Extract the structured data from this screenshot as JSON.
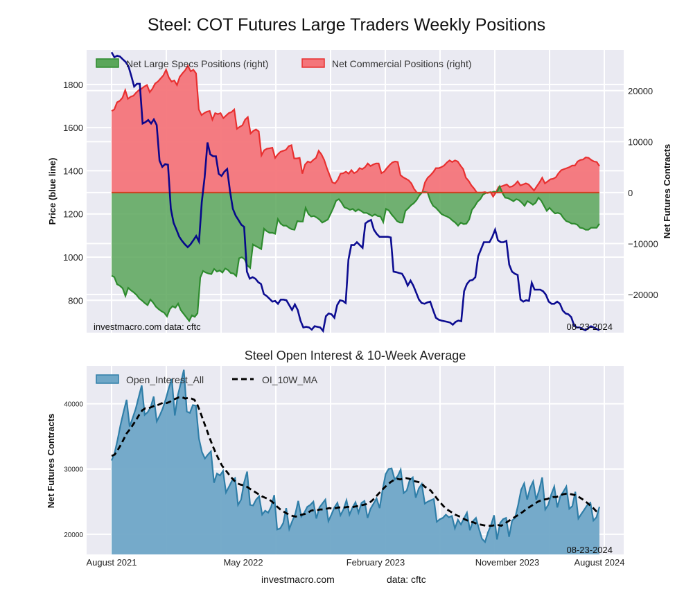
{
  "header": {
    "title": "Steel: COT Futures Large Traders Weekly Positions",
    "subtitle": "Steel Open Interest & 10-Week Average"
  },
  "footer": {
    "site": "investmacro.com",
    "source": "data: cftc"
  },
  "colors": {
    "plot_bg": "#eaeaf2",
    "grid": "#ffffff",
    "price_line": "#00008b",
    "specs_fill": "#5aa65a",
    "specs_line": "#2e8b2e",
    "commercial_fill": "#f4757a",
    "commercial_line": "#e83030",
    "oi_fill": "#6fa7c7",
    "oi_line": "#2f7ea8",
    "ma_line": "#000000"
  },
  "chart_data": [
    {
      "type": "line",
      "name": "positions",
      "title": "Steel: COT Futures Large Traders Weekly Positions",
      "xlabel": "",
      "ylabel": "Price (blue line)",
      "y2label": "Net Futures Contracts",
      "ylim": [
        650,
        1960
      ],
      "y2lim": [
        -27500,
        28000
      ],
      "yticks": [
        800,
        1000,
        1200,
        1400,
        1600,
        1800
      ],
      "y2ticks": [
        -20000,
        -10000,
        0,
        10000,
        20000
      ],
      "y2ticklabels": [
        "−20000",
        "−10000",
        "0",
        "10000",
        "20000"
      ],
      "grid": true,
      "legend_position": "top-left",
      "legend": [
        "Net Large Specs Positions (right)",
        "Net Commercial Positions (right)"
      ],
      "annotations": {
        "left": "investmacro.com    data: cftc",
        "right": "08-23-2024"
      },
      "x_start": "2021-08",
      "x_end": "2024-08-23",
      "price": [
        1949,
        1926,
        1933,
        1929,
        1916,
        1904,
        1884,
        1839,
        1790,
        1803,
        1803,
        1619,
        1625,
        1635,
        1619,
        1638,
        1612,
        1447,
        1418,
        1431,
        1428,
        1224,
        1159,
        1127,
        1094,
        1075,
        1059,
        1046,
        1059,
        1078,
        1098,
        1072,
        1256,
        1370,
        1531,
        1476,
        1467,
        1467,
        1386,
        1376,
        1396,
        1408,
        1305,
        1224,
        1192,
        1172,
        1150,
        1140,
        933,
        900,
        907,
        900,
        884,
        875,
        829,
        820,
        807,
        794,
        797,
        784,
        803,
        803,
        800,
        777,
        755,
        781,
        755,
        706,
        674,
        677,
        674,
        664,
        680,
        677,
        674,
        658,
        726,
        739,
        735,
        719,
        777,
        800,
        797,
        787,
        988,
        1056,
        1056,
        1069,
        1056,
        1043,
        1156,
        1166,
        1172,
        1127,
        1108,
        1094,
        1094,
        1094,
        1094,
        1091,
        933,
        930,
        926,
        923,
        900,
        868,
        891,
        868,
        836,
        803,
        787,
        784,
        790,
        794,
        755,
        719,
        710,
        706,
        703,
        700,
        697,
        687,
        700,
        706,
        703,
        842,
        875,
        891,
        894,
        907,
        1004,
        1036,
        1069,
        1069,
        1069,
        1094,
        1127,
        1078,
        1069,
        1069,
        1075,
        965,
        933,
        923,
        917,
        803,
        794,
        800,
        797,
        881,
        849,
        849,
        849,
        842,
        826,
        794,
        784,
        784,
        794,
        784,
        752,
        739,
        735,
        722,
        684,
        674,
        674,
        667,
        661,
        671,
        680,
        674,
        667,
        661
      ],
      "commercial": [
        16000,
        16300,
        17700,
        18000,
        18600,
        20100,
        18400,
        18800,
        19000,
        19600,
        20100,
        20400,
        20800,
        21100,
        19700,
        20400,
        21400,
        21800,
        22400,
        23000,
        24100,
        22600,
        21800,
        22000,
        21100,
        22700,
        23400,
        24000,
        24900,
        23800,
        24100,
        23400,
        16300,
        15200,
        15600,
        15900,
        16000,
        14300,
        15600,
        15400,
        15600,
        14600,
        15100,
        15600,
        15800,
        16300,
        12500,
        12900,
        13200,
        14300,
        14800,
        11600,
        12100,
        12400,
        12000,
        7300,
        8300,
        8600,
        8700,
        8800,
        6800,
        7500,
        8000,
        8200,
        8400,
        9100,
        9300,
        6700,
        6700,
        6800,
        3700,
        5500,
        6100,
        5900,
        6400,
        6800,
        8200,
        7500,
        6400,
        4800,
        3400,
        2000,
        1800,
        2500,
        3700,
        3800,
        4100,
        3700,
        4400,
        3800,
        4100,
        4800,
        4600,
        5000,
        5700,
        5200,
        5500,
        5700,
        5700,
        3800,
        4100,
        4800,
        5400,
        5900,
        6100,
        6000,
        3400,
        3000,
        2700,
        2400,
        1800,
        700,
        0,
        -100,
        0,
        2000,
        2900,
        3400,
        4000,
        4800,
        4800,
        5000,
        5300,
        5900,
        6300,
        6000,
        6300,
        6100,
        5300,
        4600,
        2900,
        2300,
        1400,
        800,
        0,
        0,
        0,
        100,
        -100,
        100,
        -800,
        0,
        1100,
        1200,
        1400,
        1600,
        1100,
        1200,
        1600,
        2200,
        1400,
        1600,
        1800,
        1600,
        1000,
        400,
        1200,
        2000,
        2900,
        1800,
        2200,
        2600,
        2700,
        3000,
        3800,
        4400,
        4600,
        4800,
        5000,
        5300,
        5300,
        6100,
        6400,
        6500,
        6900,
        6800,
        6400,
        6100,
        6000,
        5200
      ],
      "specs": [
        -16300,
        -16600,
        -18000,
        -18300,
        -18800,
        -20300,
        -18700,
        -19200,
        -19600,
        -20100,
        -20800,
        -21200,
        -21700,
        -22100,
        -21000,
        -21600,
        -22400,
        -22900,
        -23300,
        -23600,
        -24300,
        -22900,
        -22300,
        -22600,
        -21800,
        -23100,
        -23800,
        -24500,
        -25200,
        -24100,
        -24400,
        -23700,
        -16700,
        -15400,
        -15700,
        -15900,
        -16000,
        -15000,
        -15500,
        -15300,
        -15700,
        -14900,
        -15200,
        -15800,
        -15900,
        -16400,
        -12900,
        -12700,
        -13100,
        -14300,
        -14800,
        -10200,
        -10500,
        -10800,
        -11100,
        -7100,
        -7600,
        -7900,
        -7900,
        -8100,
        -5200,
        -6100,
        -6500,
        -6500,
        -6900,
        -7200,
        -7300,
        -5600,
        -5700,
        -5700,
        -3000,
        -4200,
        -4700,
        -4600,
        -4900,
        -5300,
        -5900,
        -5600,
        -5300,
        -4200,
        -3000,
        -1600,
        -1300,
        -2000,
        -2900,
        -3100,
        -3400,
        -3200,
        -3700,
        -3300,
        -3600,
        -4000,
        -4000,
        -4300,
        -4600,
        -4300,
        -4600,
        -4700,
        -5800,
        -3200,
        -3500,
        -4300,
        -4900,
        -5600,
        -5900,
        -5900,
        -3600,
        -3100,
        -2500,
        -2100,
        -1500,
        -600,
        0,
        100,
        0,
        -1600,
        -2600,
        -3000,
        -3600,
        -4200,
        -4500,
        -4700,
        -5000,
        -5500,
        -5900,
        -6500,
        -5900,
        -6200,
        -6100,
        -5300,
        -3400,
        -2700,
        -1800,
        -1300,
        -400,
        -100,
        0,
        0,
        200,
        0,
        1200,
        -100,
        -1000,
        -1100,
        -1400,
        -1700,
        -1300,
        -1500,
        -2000,
        -2600,
        -1700,
        -2000,
        -2400,
        -2000,
        -1000,
        -1600,
        -2600,
        -3600,
        -3000,
        -3600,
        -4100,
        -4000,
        -4200,
        -5000,
        -5600,
        -5800,
        -6100,
        -6100,
        -6300,
        -6900,
        -7000,
        -7300,
        -7300,
        -6900,
        -6900,
        -6900,
        -6100
      ],
      "xticks": [
        "August 2021",
        "May 2022",
        "February 2023",
        "November 2023",
        "August 2024"
      ]
    },
    {
      "type": "area",
      "name": "open-interest",
      "title": "Steel Open Interest & 10-Week Average",
      "xlabel": "",
      "ylabel": "Net Futures Contracts",
      "ylim": [
        16900,
        45800
      ],
      "yticks": [
        20000,
        30000,
        40000
      ],
      "grid": true,
      "legend_position": "top-left",
      "legend": [
        "Open_Interest_All",
        "OI_10W_MA"
      ],
      "annotations": {
        "right": "08-23-2024"
      },
      "xticks": [
        "August 2021",
        "May 2022",
        "February 2023",
        "November 2023",
        "August 2024"
      ],
      "series": [
        {
          "name": "Open_Interest_All",
          "values": [
            31300,
            32400,
            34500,
            36800,
            38800,
            40600,
            36500,
            37800,
            39200,
            41000,
            42800,
            38300,
            38700,
            39500,
            41100,
            37300,
            38200,
            39300,
            40700,
            42400,
            43800,
            38200,
            41300,
            43200,
            45200,
            38800,
            38600,
            39800,
            39700,
            34700,
            32600,
            31600,
            32200,
            32700,
            27900,
            29300,
            29000,
            29700,
            26400,
            27300,
            28200,
            28600,
            24500,
            25300,
            27900,
            29600,
            24500,
            24400,
            25300,
            25800,
            23000,
            23600,
            23300,
            24200,
            26000,
            20700,
            20900,
            21700,
            24000,
            20800,
            22000,
            23100,
            25100,
            22700,
            23300,
            24200,
            24500,
            25000,
            22400,
            24100,
            24700,
            25300,
            22000,
            23000,
            24100,
            24800,
            22900,
            23800,
            25200,
            23000,
            24100,
            24900,
            23300,
            24800,
            25100,
            22500,
            23900,
            24700,
            25500,
            24000,
            26800,
            29200,
            30000,
            30100,
            28400,
            28900,
            29900,
            26300,
            26700,
            28300,
            28700,
            25600,
            27000,
            27700,
            24700,
            25000,
            25200,
            25400,
            21900,
            22300,
            22500,
            23000,
            22600,
            22800,
            20900,
            22200,
            21500,
            22400,
            23300,
            20600,
            22000,
            22500,
            20800,
            19300,
            18800,
            20300,
            21400,
            22900,
            19200,
            21700,
            22300,
            22500,
            19600,
            22100,
            22500,
            24500,
            26800,
            27800,
            25300,
            27100,
            28100,
            25300,
            26800,
            28700,
            23800,
            24500,
            26100,
            27300,
            24100,
            25800,
            26500,
            27300,
            23900,
            24300,
            26500,
            22400,
            23100,
            23800,
            24500,
            24800,
            22100,
            22600,
            24200
          ],
          "style": "filled"
        },
        {
          "name": "OI_10W_MA",
          "values": [
            32000,
            32200,
            32900,
            33700,
            34600,
            35500,
            36100,
            36800,
            37500,
            38300,
            39000,
            39300,
            39300,
            39500,
            39700,
            39800,
            40000,
            40200,
            40100,
            40300,
            40600,
            40800,
            41000,
            41000,
            40800,
            40900,
            40800,
            40600,
            39800,
            38600,
            37300,
            36000,
            34700,
            33500,
            32400,
            31400,
            30500,
            29900,
            29300,
            28700,
            28200,
            27800,
            27600,
            27500,
            27300,
            27000,
            26700,
            26400,
            26100,
            25800,
            25600,
            25400,
            25100,
            24700,
            24200,
            23800,
            23500,
            23200,
            23000,
            22800,
            22700,
            22800,
            23000,
            23100,
            23300,
            23600,
            23700,
            23700,
            23800,
            23800,
            23900,
            24000,
            23900,
            24000,
            24100,
            24100,
            24100,
            24200,
            24100,
            24200,
            24300,
            24400,
            24500,
            24600,
            24800,
            25200,
            25700,
            26200,
            26700,
            27200,
            27600,
            28000,
            28300,
            28500,
            28400,
            28500,
            28600,
            28500,
            28300,
            28100,
            28000,
            27800,
            27300,
            27000,
            26700,
            26100,
            25500,
            24900,
            24400,
            23900,
            23600,
            23300,
            23000,
            22800,
            22600,
            22300,
            22100,
            21900,
            21800,
            21600,
            21500,
            21400,
            21300,
            21300,
            21300,
            21400,
            21400,
            21300,
            21600,
            21900,
            22200,
            22500,
            22800,
            23100,
            23400,
            23800,
            24100,
            24400,
            24700,
            25000,
            25200,
            25300,
            25400,
            25600,
            25700,
            25700,
            25900,
            26100,
            26200,
            26200,
            26100,
            26000,
            25800,
            25500,
            25200,
            24800,
            24400,
            24000,
            23500,
            23300
          ]
        }
      ]
    }
  ]
}
